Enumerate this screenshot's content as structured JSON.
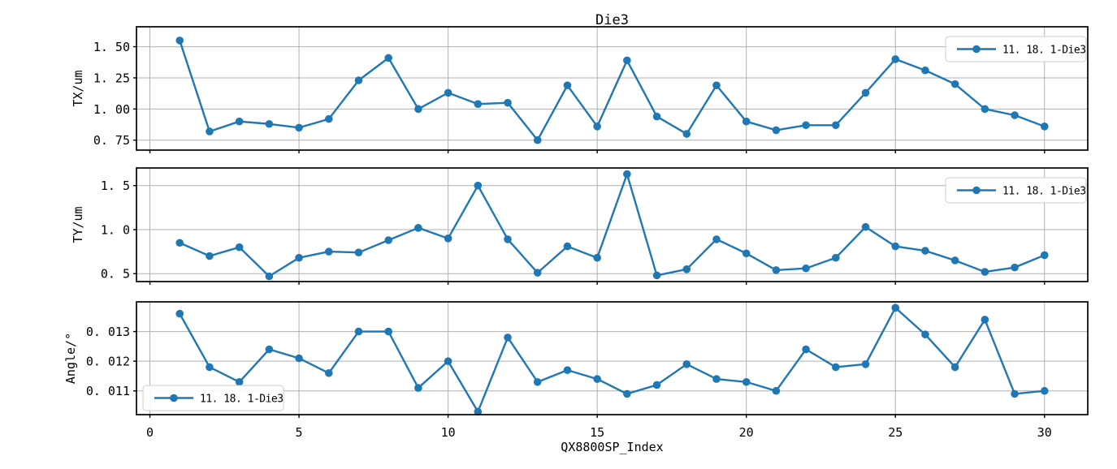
{
  "figure": {
    "title": "Die3",
    "xlabel": "QX8800SP_Index",
    "legend_label": "11. 18. 1-Die3",
    "background": "#ffffff",
    "line_color": "#1f77b4",
    "grid_color": "#b0b0b0",
    "spine_color": "#000000"
  },
  "chart_data": [
    {
      "type": "line",
      "id": "tx",
      "ylabel": "TX/um",
      "legend_position": "upper right",
      "grid": true,
      "xlim": [
        -0.45,
        31.45
      ],
      "ylim": [
        0.67,
        1.66
      ],
      "xticks": {
        "values": [
          0,
          5,
          10,
          15,
          20,
          25,
          30
        ],
        "labels": [
          "0",
          "5",
          "10",
          "15",
          "20",
          "25",
          "30"
        ]
      },
      "yticks": {
        "values": [
          0.75,
          1.0,
          1.25,
          1.5
        ],
        "labels": [
          "0. 75",
          "1. 00",
          "1. 25",
          "1. 50"
        ]
      },
      "series": [
        {
          "name": "11.18.1-Die3",
          "label": "11. 18. 1-Die3",
          "x": [
            1,
            2,
            3,
            4,
            5,
            6,
            7,
            8,
            9,
            10,
            11,
            12,
            13,
            14,
            15,
            16,
            17,
            18,
            19,
            20,
            21,
            22,
            23,
            24,
            25,
            26,
            27,
            28,
            29,
            30
          ],
          "y": [
            1.55,
            0.82,
            0.9,
            0.88,
            0.85,
            0.92,
            1.23,
            1.41,
            1.0,
            1.13,
            1.04,
            1.05,
            0.75,
            1.19,
            0.86,
            1.39,
            0.94,
            0.8,
            1.19,
            0.9,
            0.83,
            0.87,
            0.87,
            1.13,
            1.4,
            1.31,
            1.2,
            1.0,
            0.95,
            0.86
          ]
        }
      ]
    },
    {
      "type": "line",
      "id": "ty",
      "ylabel": "TY/um",
      "legend_position": "upper right",
      "grid": true,
      "xlim": [
        -0.45,
        31.45
      ],
      "ylim": [
        0.41,
        1.7
      ],
      "xticks": {
        "values": [
          0,
          5,
          10,
          15,
          20,
          25,
          30
        ],
        "labels": [
          "0",
          "5",
          "10",
          "15",
          "20",
          "25",
          "30"
        ]
      },
      "yticks": {
        "values": [
          0.5,
          1.0,
          1.5
        ],
        "labels": [
          "0. 5",
          "1. 0",
          "1. 5"
        ]
      },
      "series": [
        {
          "name": "11.18.1-Die3",
          "label": "11. 18. 1-Die3",
          "x": [
            1,
            2,
            3,
            4,
            5,
            6,
            7,
            8,
            9,
            10,
            11,
            12,
            13,
            14,
            15,
            16,
            17,
            18,
            19,
            20,
            21,
            22,
            23,
            24,
            25,
            26,
            27,
            28,
            29,
            30
          ],
          "y": [
            0.85,
            0.7,
            0.8,
            0.47,
            0.68,
            0.75,
            0.74,
            0.88,
            1.02,
            0.9,
            1.5,
            0.89,
            0.51,
            0.81,
            0.68,
            1.63,
            0.48,
            0.55,
            0.89,
            0.73,
            0.54,
            0.56,
            0.68,
            1.03,
            0.81,
            0.76,
            0.65,
            0.52,
            0.57,
            0.71
          ]
        }
      ]
    },
    {
      "type": "line",
      "id": "angle",
      "ylabel": "Angle/°",
      "legend_position": "lower left",
      "grid": true,
      "xlim": [
        -0.45,
        31.45
      ],
      "ylim": [
        0.0102,
        0.014
      ],
      "xticks": {
        "values": [
          0,
          5,
          10,
          15,
          20,
          25,
          30
        ],
        "labels": [
          "0",
          "5",
          "10",
          "15",
          "20",
          "25",
          "30"
        ]
      },
      "yticks": {
        "values": [
          0.011,
          0.012,
          0.013
        ],
        "labels": [
          "0. 011",
          "0. 012",
          "0. 013"
        ]
      },
      "series": [
        {
          "name": "11.18.1-Die3",
          "label": "11. 18. 1-Die3",
          "x": [
            1,
            2,
            3,
            4,
            5,
            6,
            7,
            8,
            9,
            10,
            11,
            12,
            13,
            14,
            15,
            16,
            17,
            18,
            19,
            20,
            21,
            22,
            23,
            24,
            25,
            26,
            27,
            28,
            29,
            30
          ],
          "y": [
            0.0136,
            0.0118,
            0.0113,
            0.0124,
            0.0121,
            0.0116,
            0.013,
            0.013,
            0.0111,
            0.012,
            0.0103,
            0.0128,
            0.0113,
            0.0117,
            0.0114,
            0.0109,
            0.0112,
            0.0119,
            0.0114,
            0.0113,
            0.011,
            0.0124,
            0.0118,
            0.0119,
            0.0138,
            0.0129,
            0.0118,
            0.0134,
            0.0109,
            0.011
          ]
        }
      ]
    }
  ]
}
